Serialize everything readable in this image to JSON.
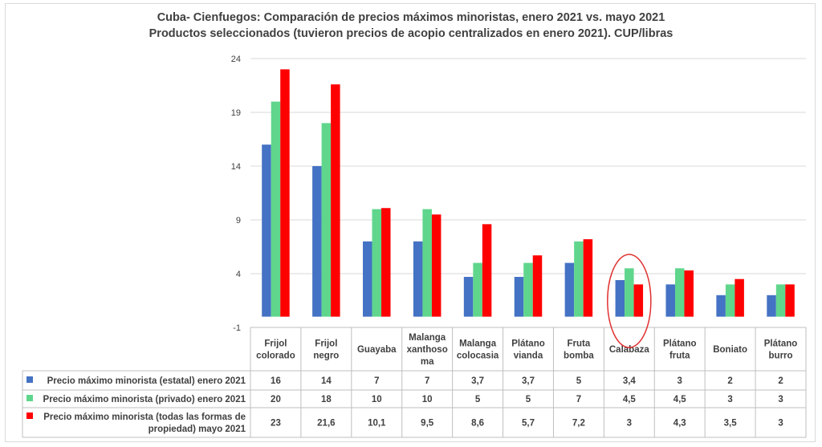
{
  "chart_data": {
    "type": "bar",
    "title": [
      "Cuba- Cienfuegos: Comparación de precios máximos minoristas, enero 2021 vs. mayo 2021",
      "Productos seleccionados (tuvieron precios de acopio centralizados en enero 2021). CUP/libras"
    ],
    "categories": [
      [
        "Frijol",
        "colorado"
      ],
      [
        "Frijol",
        "negro"
      ],
      [
        "Guayaba"
      ],
      [
        "Malanga",
        "xanthoso",
        "ma"
      ],
      [
        "Malanga",
        "colocasia"
      ],
      [
        "Plátano",
        "vianda"
      ],
      [
        "Fruta",
        "bomba"
      ],
      [
        "Calabaza"
      ],
      [
        "Plátano",
        "fruta"
      ],
      [
        "Boniato"
      ],
      [
        "Plátano",
        "burro"
      ]
    ],
    "series": [
      {
        "name": "Precio máximo minorista  (estatal) enero 2021",
        "name_lines": [
          "Precio máximo minorista  (estatal) enero 2021"
        ],
        "color": "#4472c4",
        "values": [
          16,
          14,
          7,
          7,
          3.7,
          3.7,
          5,
          3.4,
          3,
          2,
          2
        ],
        "labels": [
          "16",
          "14",
          "7",
          "7",
          "3,7",
          "3,7",
          "5",
          "3,4",
          "3",
          "2",
          "2"
        ]
      },
      {
        "name": "Precio máximo minorista (privado) enero 2021",
        "name_lines": [
          "Precio máximo minorista (privado) enero 2021"
        ],
        "color": "#5fd68c",
        "values": [
          20,
          18,
          10,
          10,
          5,
          5,
          7,
          4.5,
          4.5,
          3,
          3
        ],
        "labels": [
          "20",
          "18",
          "10",
          "10",
          "5",
          "5",
          "7",
          "4,5",
          "4,5",
          "3",
          "3"
        ]
      },
      {
        "name": "Precio máximo minorista  (todas las formas de propiedad) mayo 2021",
        "name_lines": [
          "Precio máximo minorista  (todas las formas de",
          "propiedad) mayo 2021"
        ],
        "color": "#ff0000",
        "values": [
          23,
          21.6,
          10.1,
          9.5,
          8.6,
          5.7,
          7.2,
          3,
          4.3,
          3.5,
          3
        ],
        "labels": [
          "23",
          "21,6",
          "10,1",
          "9,5",
          "8,6",
          "5,7",
          "7,2",
          "3",
          "4,3",
          "3,5",
          "3"
        ]
      }
    ],
    "yticks": [
      "24",
      "19",
      "14",
      "9",
      "4",
      "-1"
    ],
    "ytick_values": [
      24,
      19,
      14,
      9,
      4,
      -1
    ],
    "ylim": [
      -1,
      24
    ],
    "grid": true,
    "legend": "data-table",
    "annotation": {
      "type": "ellipse",
      "category": "Calabaza",
      "color": "#e03030"
    }
  }
}
